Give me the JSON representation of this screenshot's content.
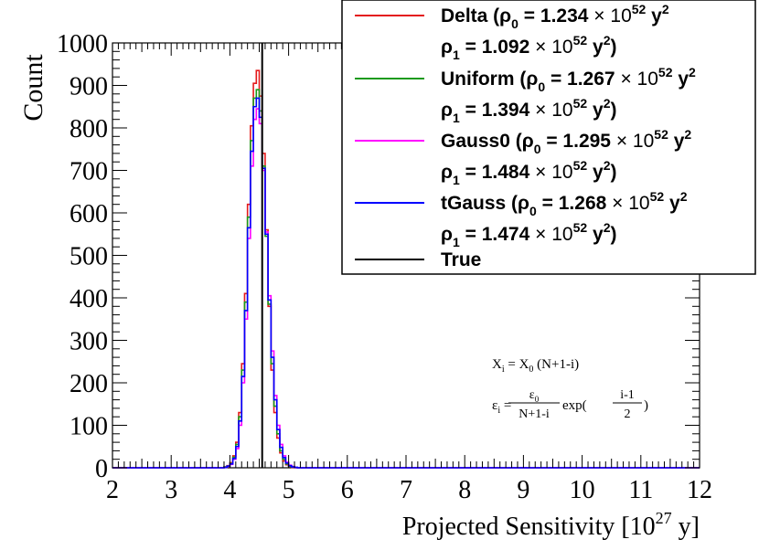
{
  "chart_data": {
    "type": "histogram",
    "ylabel": "Count",
    "xlabel": "Projected Sensitivity [10",
    "xlabel_exp": "27",
    "xlabel_unit": " y]",
    "xlim": [
      2,
      12
    ],
    "ylim": [
      0,
      1000
    ],
    "xticks": [
      "2",
      "3",
      "4",
      "5",
      "6",
      "7",
      "8",
      "9",
      "10",
      "11",
      "12"
    ],
    "yticks": [
      "0",
      "100",
      "200",
      "300",
      "400",
      "500",
      "600",
      "700",
      "800",
      "900",
      "1000"
    ],
    "true_value": 4.55,
    "bin_width": 0.05,
    "series": [
      {
        "name": "Delta",
        "color": "#e41a1c",
        "rho0": "1.234",
        "rho1": "1.092",
        "x": [
          3.85,
          3.9,
          3.95,
          4.0,
          4.05,
          4.1,
          4.15,
          4.2,
          4.25,
          4.3,
          4.35,
          4.4,
          4.45,
          4.5,
          4.55,
          4.6,
          4.65,
          4.7,
          4.75,
          4.8,
          4.85,
          4.9,
          4.95,
          5.0,
          5.05,
          5.1,
          5.15,
          5.2
        ],
        "values": [
          0,
          2,
          5,
          12,
          28,
          60,
          130,
          245,
          410,
          620,
          805,
          905,
          935,
          875,
          740,
          560,
          380,
          230,
          130,
          70,
          35,
          16,
          7,
          3,
          1,
          0,
          0,
          0
        ]
      },
      {
        "name": "Uniform",
        "color": "#1a9a1a",
        "rho0": "1.267",
        "rho1": "1.394",
        "x": [
          3.85,
          3.9,
          3.95,
          4.0,
          4.05,
          4.1,
          4.15,
          4.2,
          4.25,
          4.3,
          4.35,
          4.4,
          4.45,
          4.5,
          4.55,
          4.6,
          4.65,
          4.7,
          4.75,
          4.8,
          4.85,
          4.9,
          4.95,
          5.0,
          5.05,
          5.1,
          5.15,
          5.2
        ],
        "values": [
          0,
          2,
          4,
          10,
          25,
          55,
          120,
          230,
          390,
          590,
          770,
          870,
          890,
          840,
          710,
          545,
          385,
          245,
          145,
          80,
          40,
          20,
          9,
          4,
          2,
          1,
          0,
          0
        ]
      },
      {
        "name": "Gauss0",
        "color": "#ff00ff",
        "rho0": "1.295",
        "rho1": "1.484",
        "x": [
          3.85,
          3.9,
          3.95,
          4.0,
          4.05,
          4.1,
          4.15,
          4.2,
          4.25,
          4.3,
          4.35,
          4.4,
          4.45,
          4.5,
          4.55,
          4.6,
          4.65,
          4.7,
          4.75,
          4.8,
          4.85,
          4.9,
          4.95,
          5.0,
          5.05,
          5.1,
          5.15,
          5.2
        ],
        "values": [
          0,
          1,
          3,
          8,
          20,
          45,
          100,
          200,
          350,
          540,
          710,
          820,
          845,
          810,
          700,
          555,
          405,
          275,
          170,
          100,
          55,
          28,
          13,
          6,
          3,
          1,
          0,
          0
        ]
      },
      {
        "name": "tGauss",
        "color": "#0000ff",
        "rho0": "1.268",
        "rho1": "1.474",
        "x": [
          3.85,
          3.9,
          3.95,
          4.0,
          4.05,
          4.1,
          4.15,
          4.2,
          4.25,
          4.3,
          4.35,
          4.4,
          4.45,
          4.5,
          4.55,
          4.6,
          4.65,
          4.7,
          4.75,
          4.8,
          4.85,
          4.9,
          4.95,
          5.0,
          5.05,
          5.1,
          5.15,
          5.2
        ],
        "values": [
          0,
          1,
          4,
          9,
          22,
          50,
          110,
          215,
          370,
          565,
          745,
          850,
          870,
          825,
          705,
          550,
          395,
          260,
          160,
          90,
          48,
          24,
          11,
          5,
          2,
          1,
          0,
          0
        ]
      }
    ],
    "legend": {
      "entries": [
        {
          "name": "Delta",
          "rho0": "1.234",
          "rho1": "1.092",
          "color": "#e41a1c"
        },
        {
          "name": "Uniform",
          "rho0": "1.267",
          "rho1": "1.394",
          "color": "#1a9a1a"
        },
        {
          "name": "Gauss0",
          "rho0": "1.295",
          "rho1": "1.484",
          "color": "#ff00ff"
        },
        {
          "name": "tGauss",
          "rho0": "1.268",
          "rho1": "1.474",
          "color": "#0000ff"
        }
      ],
      "true_label": "True",
      "true_color": "#000000",
      "times_ten": "× 10",
      "exp52": "52",
      "y_unit": "y",
      "y_exp": "2",
      "position": "top-right"
    },
    "annotation": {
      "line1": "X_i = X_0 (N+1-i)",
      "line2": "ε_i = ε_0 / (N+1-i) · exp((i-1)/2)"
    }
  }
}
